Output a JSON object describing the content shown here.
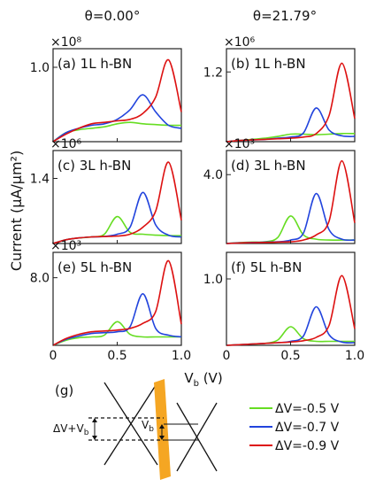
{
  "column_titles": [
    "θ=0.00°",
    "θ=21.79°"
  ],
  "ylabel": "Current (μA/μm²)",
  "xlabel": "V",
  "xlabel_sub": "b",
  "xlabel_unit": " (V)",
  "x_ticks": [
    "0",
    "0.5",
    "1.0"
  ],
  "series_colors": [
    "#66dd22",
    "#2244dd",
    "#dd1111"
  ],
  "legend": [
    "ΔV=-0.5 V",
    "ΔV=-0.7 V",
    "ΔV=-0.9 V"
  ],
  "chart_data": [
    {
      "type": "line",
      "label": "(a) 1L h-BN",
      "multiplier": "×10⁸",
      "ytick": "1.0",
      "ytick_value": 1.0,
      "xlim": [
        0,
        1
      ],
      "ylim": [
        0,
        1.25
      ],
      "x": [
        0,
        0.1,
        0.2,
        0.3,
        0.4,
        0.5,
        0.6,
        0.7,
        0.8,
        0.9,
        1.0
      ],
      "series": [
        {
          "values": [
            0,
            0.12,
            0.16,
            0.18,
            0.2,
            0.24,
            0.26,
            0.24,
            0.23,
            0.22,
            0.22
          ]
        },
        {
          "values": [
            0,
            0.12,
            0.18,
            0.22,
            0.24,
            0.3,
            0.43,
            0.63,
            0.4,
            0.22,
            0.18
          ]
        },
        {
          "values": [
            0,
            0.1,
            0.18,
            0.24,
            0.26,
            0.28,
            0.3,
            0.38,
            0.6,
            1.1,
            0.4
          ]
        }
      ]
    },
    {
      "type": "line",
      "label": "(b) 1L h-BN",
      "multiplier": "×10⁶",
      "ytick": "1.2",
      "ytick_value": 1.2,
      "xlim": [
        0,
        1
      ],
      "ylim": [
        0,
        1.6
      ],
      "x": [
        0,
        0.1,
        0.2,
        0.3,
        0.4,
        0.5,
        0.6,
        0.7,
        0.8,
        0.9,
        1.0
      ],
      "series": [
        {
          "values": [
            0,
            0.02,
            0.04,
            0.06,
            0.09,
            0.13,
            0.13,
            0.12,
            0.13,
            0.14,
            0.14
          ]
        },
        {
          "values": [
            0,
            0.02,
            0.03,
            0.04,
            0.06,
            0.08,
            0.15,
            0.58,
            0.2,
            0.1,
            0.09
          ]
        },
        {
          "values": [
            0,
            0.02,
            0.03,
            0.04,
            0.05,
            0.06,
            0.08,
            0.14,
            0.45,
            1.35,
            0.4
          ]
        }
      ]
    },
    {
      "type": "line",
      "label": "(c) 3L h-BN",
      "multiplier": "×10⁶",
      "ytick": "1.4",
      "ytick_value": 1.4,
      "xlim": [
        0,
        1
      ],
      "ylim": [
        0,
        2.0
      ],
      "x": [
        0,
        0.1,
        0.2,
        0.3,
        0.4,
        0.5,
        0.6,
        0.7,
        0.8,
        0.9,
        1.0
      ],
      "series": [
        {
          "values": [
            0,
            0.08,
            0.12,
            0.14,
            0.2,
            0.58,
            0.24,
            0.2,
            0.18,
            0.17,
            0.17
          ]
        },
        {
          "values": [
            0,
            0.08,
            0.12,
            0.14,
            0.15,
            0.2,
            0.35,
            1.1,
            0.4,
            0.18,
            0.14
          ]
        },
        {
          "values": [
            0,
            0.08,
            0.12,
            0.14,
            0.15,
            0.16,
            0.2,
            0.35,
            0.7,
            1.75,
            0.5
          ]
        }
      ]
    },
    {
      "type": "line",
      "label": "(d) 3L h-BN",
      "multiplier": "×10³",
      "ytick": "4.0",
      "ytick_value": 4.0,
      "xlim": [
        0,
        1
      ],
      "ylim": [
        0,
        5.4
      ],
      "x": [
        0,
        0.1,
        0.2,
        0.3,
        0.4,
        0.5,
        0.6,
        0.7,
        0.8,
        0.9,
        1.0
      ],
      "series": [
        {
          "values": [
            0,
            0.05,
            0.08,
            0.1,
            0.35,
            1.6,
            0.5,
            0.25,
            0.2,
            0.2,
            0.2
          ]
        },
        {
          "values": [
            0,
            0.04,
            0.06,
            0.08,
            0.1,
            0.2,
            0.6,
            2.9,
            0.8,
            0.25,
            0.2
          ]
        },
        {
          "values": [
            0,
            0.03,
            0.05,
            0.06,
            0.08,
            0.1,
            0.2,
            0.5,
            1.3,
            4.8,
            1.2
          ]
        }
      ]
    },
    {
      "type": "line",
      "label": "(e) 5L h-BN",
      "multiplier": "×10³",
      "ytick": "8.0",
      "ytick_value": 8.0,
      "xlim": [
        0,
        1
      ],
      "ylim": [
        0,
        11.0
      ],
      "x": [
        0,
        0.1,
        0.2,
        0.3,
        0.4,
        0.5,
        0.6,
        0.7,
        0.8,
        0.9,
        1.0
      ],
      "series": [
        {
          "values": [
            0,
            0.6,
            0.9,
            1.0,
            1.2,
            2.8,
            1.3,
            1.0,
            1.0,
            1.0,
            1.0
          ]
        },
        {
          "values": [
            0,
            0.7,
            1.1,
            1.4,
            1.5,
            1.6,
            2.2,
            6.1,
            2.0,
            1.2,
            1.0
          ]
        },
        {
          "values": [
            0,
            0.8,
            1.3,
            1.6,
            1.7,
            1.8,
            2.0,
            2.6,
            4.0,
            10.0,
            2.5
          ]
        }
      ]
    },
    {
      "type": "line",
      "label": "(f) 5L h-BN",
      "multiplier": "",
      "ytick": "1.0",
      "ytick_value": 1.0,
      "xlim": [
        0,
        1
      ],
      "ylim": [
        0,
        1.4
      ],
      "x": [
        0,
        0.1,
        0.2,
        0.3,
        0.4,
        0.5,
        0.6,
        0.7,
        0.8,
        0.9,
        1.0
      ],
      "series": [
        {
          "values": [
            0,
            0.01,
            0.02,
            0.03,
            0.08,
            0.28,
            0.1,
            0.06,
            0.06,
            0.06,
            0.06
          ]
        },
        {
          "values": [
            0,
            0.01,
            0.02,
            0.03,
            0.04,
            0.06,
            0.14,
            0.58,
            0.16,
            0.05,
            0.04
          ]
        },
        {
          "values": [
            0,
            0.01,
            0.02,
            0.03,
            0.04,
            0.05,
            0.07,
            0.12,
            0.3,
            1.05,
            0.25
          ]
        }
      ]
    }
  ],
  "diagram": {
    "label": "(g)",
    "left_annotation": "ΔV+V",
    "left_annotation_sub": "b",
    "mid_annotation": "V",
    "mid_annotation_sub": "b",
    "barrier_color": "#f5a623"
  }
}
